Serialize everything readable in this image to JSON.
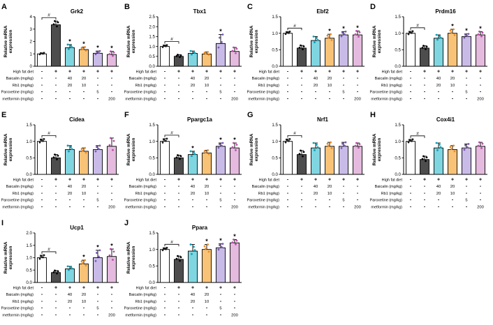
{
  "figure": {
    "background": "#ffffff",
    "ylabel_line1": "Relative mRNA",
    "ylabel_line2": "expression",
    "bar_edge_color": "#000000",
    "bar_fill": [
      "#ffffff",
      "#4d4d4d",
      "#7fd6e1",
      "#f8c377",
      "#c9bbe8",
      "#e4bade"
    ],
    "dot_colors": [
      "#1a1a1a",
      "#000000",
      "#0d9eb4",
      "#ee8b21",
      "#7a5ab5",
      "#bb4fa8"
    ],
    "treatment_rows": [
      {
        "label": "High fat diet",
        "values": [
          "-",
          "+",
          "+",
          "+",
          "+",
          "+"
        ]
      },
      {
        "label": "Baicalin (mg/kg)",
        "values": [
          "-",
          "-",
          "40",
          "20",
          "-",
          "-"
        ]
      },
      {
        "label": "Rb1 (mg/kg)",
        "values": [
          "-",
          "-",
          "20",
          "10",
          "-",
          "-"
        ]
      },
      {
        "label": "Paroxetine (mg/kg)",
        "values": [
          "-",
          "-",
          "-",
          "-",
          "5",
          "-"
        ]
      },
      {
        "label": "metformin (mg/kg)",
        "values": [
          "-",
          "-",
          "-",
          "-",
          "-",
          "200"
        ]
      }
    ]
  },
  "chart_data": [
    {
      "panel_letter": "A",
      "type": "bar",
      "title": "Grk2",
      "ylabel": "Relative mRNA expression",
      "ylim": [
        0,
        4
      ],
      "yticks": [
        0,
        1,
        2,
        3,
        4
      ],
      "ytick_labels": [
        "0",
        "1",
        "2",
        "3",
        "4"
      ],
      "values": [
        1.0,
        3.35,
        1.5,
        1.35,
        1.05,
        0.95
      ],
      "errors": [
        0.08,
        0.3,
        0.25,
        0.2,
        0.18,
        0.25
      ],
      "hash_pair": [
        0,
        1
      ],
      "star_bars": [
        2,
        3,
        4,
        5
      ]
    },
    {
      "panel_letter": "B",
      "type": "bar",
      "title": "Tbx1",
      "ylabel": "Relative mRNA expression",
      "ylim": [
        0,
        2.5
      ],
      "yticks": [
        0,
        0.5,
        1.0,
        1.5,
        2.0,
        2.5
      ],
      "ytick_labels": [
        "0.0",
        "0.5",
        "1.0",
        "1.5",
        "2.0",
        "2.5"
      ],
      "values": [
        1.0,
        0.5,
        0.65,
        0.62,
        1.15,
        0.75
      ],
      "errors": [
        0.07,
        0.08,
        0.12,
        0.1,
        0.45,
        0.2
      ],
      "hash_pair": [
        0,
        1
      ],
      "star_bars": [
        4
      ]
    },
    {
      "panel_letter": "C",
      "type": "bar",
      "title": "Ebf2",
      "ylabel": "Relative mRNA expression",
      "ylim": [
        0,
        1.5
      ],
      "yticks": [
        0,
        0.5,
        1.0,
        1.5
      ],
      "ytick_labels": [
        "0.0",
        "0.5",
        "1.0",
        "1.5"
      ],
      "values": [
        1.0,
        0.55,
        0.78,
        0.85,
        0.95,
        0.95
      ],
      "errors": [
        0.05,
        0.08,
        0.12,
        0.12,
        0.1,
        0.12
      ],
      "hash_pair": [
        0,
        1
      ],
      "star_bars": [
        3,
        4,
        5
      ]
    },
    {
      "panel_letter": "D",
      "type": "bar",
      "title": "Prdm16",
      "ylabel": "Relative mRNA expression",
      "ylim": [
        0,
        1.5
      ],
      "yticks": [
        0,
        0.5,
        1.0,
        1.5
      ],
      "ytick_labels": [
        "0.0",
        "0.5",
        "1.0",
        "1.5"
      ],
      "values": [
        1.0,
        0.55,
        0.85,
        1.0,
        0.9,
        0.95
      ],
      "errors": [
        0.06,
        0.07,
        0.1,
        0.12,
        0.08,
        0.1
      ],
      "hash_pair": [
        0,
        1
      ],
      "star_bars": [
        3,
        4,
        5
      ]
    },
    {
      "panel_letter": "E",
      "type": "bar",
      "title": "Cidea",
      "ylabel": "Relative mRNA expression",
      "ylim": [
        0,
        1.5
      ],
      "yticks": [
        0,
        0.5,
        1.0,
        1.5
      ],
      "ytick_labels": [
        "0.0",
        "0.5",
        "1.0",
        "1.5"
      ],
      "values": [
        1.0,
        0.5,
        0.75,
        0.7,
        0.75,
        0.85
      ],
      "errors": [
        0.07,
        0.1,
        0.12,
        0.1,
        0.12,
        0.25
      ],
      "hash_pair": [
        0,
        1
      ],
      "star_bars": []
    },
    {
      "panel_letter": "F",
      "type": "bar",
      "title": "Ppargc1a",
      "ylabel": "Relative mRNA expression",
      "ylim": [
        0,
        1.5
      ],
      "yticks": [
        0,
        0.5,
        1.0,
        1.5
      ],
      "ytick_labels": [
        "0.0",
        "0.5",
        "1.0",
        "1.5"
      ],
      "values": [
        1.0,
        0.5,
        0.6,
        0.65,
        0.85,
        0.8
      ],
      "errors": [
        0.08,
        0.08,
        0.1,
        0.08,
        0.1,
        0.15
      ],
      "hash_pair": [
        0,
        1
      ],
      "star_bars": [
        2,
        4,
        5
      ]
    },
    {
      "panel_letter": "G",
      "type": "bar",
      "title": "Nrf1",
      "ylabel": "Relative mRNA expression",
      "ylim": [
        0,
        1.5
      ],
      "yticks": [
        0,
        0.5,
        1.0,
        1.5
      ],
      "ytick_labels": [
        "0.0",
        "0.5",
        "1.0",
        "1.5"
      ],
      "values": [
        1.0,
        0.6,
        0.8,
        0.85,
        0.85,
        0.85
      ],
      "errors": [
        0.07,
        0.12,
        0.15,
        0.12,
        0.12,
        0.1
      ],
      "hash_pair": [
        0,
        1
      ],
      "star_bars": []
    },
    {
      "panel_letter": "H",
      "type": "bar",
      "title": "Cox4i1",
      "ylabel": "Relative mRNA expression",
      "ylim": [
        0,
        1.5
      ],
      "yticks": [
        0,
        0.5,
        1.0,
        1.5
      ],
      "ytick_labels": [
        "0.0",
        "0.5",
        "1.0",
        "1.5"
      ],
      "values": [
        1.0,
        0.45,
        0.8,
        0.75,
        0.8,
        0.85
      ],
      "errors": [
        0.06,
        0.1,
        0.15,
        0.12,
        0.12,
        0.12
      ],
      "hash_pair": [
        0,
        1
      ],
      "star_bars": []
    },
    {
      "panel_letter": "I",
      "type": "bar",
      "title": "Ucp1",
      "ylabel": "Relative mRNA expression",
      "ylim": [
        0,
        2.0
      ],
      "yticks": [
        0,
        0.5,
        1.0,
        1.5,
        2.0
      ],
      "ytick_labels": [
        "0.0",
        "0.5",
        "1.0",
        "1.5",
        "2.0"
      ],
      "values": [
        1.0,
        0.4,
        0.55,
        0.75,
        1.0,
        1.05
      ],
      "errors": [
        0.1,
        0.08,
        0.1,
        0.15,
        0.3,
        0.3
      ],
      "hash_pair": [
        0,
        1
      ],
      "star_bars": [
        3,
        4,
        5
      ]
    },
    {
      "panel_letter": "J",
      "type": "bar",
      "title": "Ppara",
      "ylabel": "Relative mRNA expression",
      "ylim": [
        0,
        1.5
      ],
      "yticks": [
        0,
        0.5,
        1.0,
        1.5
      ],
      "ytick_labels": [
        "0.0",
        "0.5",
        "1.0",
        "1.5"
      ],
      "values": [
        1.0,
        0.7,
        0.95,
        1.0,
        1.05,
        1.2
      ],
      "errors": [
        0.05,
        0.1,
        0.2,
        0.15,
        0.12,
        0.1
      ],
      "hash_pair": [
        0,
        1
      ],
      "star_bars": [
        3,
        4,
        5
      ]
    }
  ]
}
